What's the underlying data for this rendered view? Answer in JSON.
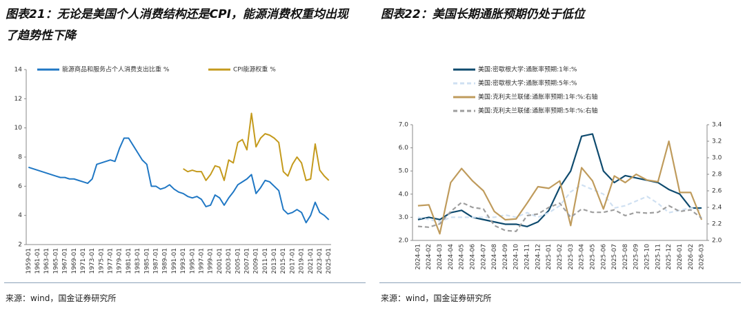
{
  "chart_data": [
    {
      "type": "line",
      "title": "图表21：无论是美国个人消费结构还是CPI，能源消费权重均出现了趋势性下降",
      "source": "来源：wind，国金证券研究所",
      "categories": [
        "1959-01",
        null,
        "1961-01",
        null,
        "1963-01",
        null,
        "1965-01",
        null,
        "1967-01",
        null,
        "1969-01",
        null,
        "1971-01",
        null,
        "1973-01",
        null,
        "1975-01",
        null,
        "1977-01",
        null,
        "1979-01",
        null,
        "1981-01",
        null,
        "1983-01",
        null,
        "1985-01",
        null,
        "1987-01",
        null,
        "1989-01",
        null,
        "1991-01",
        null,
        "1993-01",
        null,
        "1995-01",
        null,
        "1997-01",
        null,
        "1999-01",
        null,
        "2001-01",
        null,
        "2003-01",
        null,
        "2005-01",
        null,
        "2007-01",
        null,
        "2009-01",
        null,
        "2011-01",
        null,
        "2013-01",
        null,
        "2015-01",
        null,
        "2017-01",
        null,
        "2019-01",
        null,
        "2021-01",
        null,
        "2023-01",
        null,
        "2025-01"
      ],
      "series": [
        {
          "name": "能源商品和服务占个人消费支出比重 %",
          "color": "#1f77c4",
          "values": [
            7.3,
            7.2,
            7.1,
            7.0,
            6.9,
            6.8,
            6.7,
            6.6,
            6.6,
            6.5,
            6.5,
            6.4,
            6.3,
            6.2,
            6.5,
            7.5,
            7.6,
            7.7,
            7.8,
            7.7,
            8.6,
            9.3,
            9.3,
            8.8,
            8.3,
            7.8,
            7.5,
            6.0,
            6.0,
            5.8,
            5.9,
            6.1,
            5.8,
            5.6,
            5.5,
            5.3,
            5.2,
            5.3,
            5.1,
            4.6,
            4.7,
            5.4,
            5.2,
            4.7,
            5.2,
            5.6,
            6.1,
            6.3,
            6.5,
            6.8,
            5.5,
            5.9,
            6.4,
            6.3,
            6.0,
            5.7,
            4.4,
            4.1,
            4.2,
            4.4,
            4.2,
            3.5,
            4.0,
            4.9,
            4.2,
            4.0,
            3.7
          ]
        },
        {
          "name": "CPI能源权重 %",
          "color": "#c49a1c",
          "values": [
            null,
            null,
            null,
            null,
            null,
            null,
            null,
            null,
            null,
            null,
            null,
            null,
            null,
            null,
            null,
            null,
            null,
            null,
            null,
            null,
            null,
            null,
            null,
            null,
            null,
            null,
            null,
            null,
            null,
            null,
            null,
            null,
            null,
            null,
            7.2,
            7.0,
            7.1,
            7.0,
            7.0,
            6.4,
            6.8,
            7.4,
            7.3,
            6.4,
            7.8,
            7.6,
            9.0,
            9.2,
            8.5,
            11.0,
            8.7,
            9.3,
            9.6,
            9.5,
            9.3,
            9.0,
            7.0,
            6.7,
            7.5,
            8.0,
            7.6,
            6.4,
            6.5,
            8.9,
            7.1,
            6.7,
            6.4
          ]
        }
      ],
      "ylim": [
        2,
        14
      ],
      "yticks": [
        2,
        4,
        6,
        8,
        10,
        12,
        14
      ]
    },
    {
      "type": "line",
      "title": "图表22：美国长期通胀预期仍处于低位",
      "source": "来源：wind，国金证券研究所",
      "categories": [
        "2024-01",
        "2024-02",
        "2024-03",
        "2024-04",
        "2024-05",
        "2024-06",
        "2024-07",
        "2024-08",
        "2024-09",
        "2024-10",
        "2024-11",
        "2024-12",
        "2025-01",
        "2025-02",
        "2025-03",
        "2025-04",
        "2025-05",
        "2025-06",
        "2025-07",
        "2025-08",
        "2025-09",
        "2025-10",
        "2025-11",
        "2025-12",
        "2026-01",
        "2026-02",
        "2026-03"
      ],
      "series": [
        {
          "name": "美国:密歇根大学:通胀率预期:1年:%",
          "color": "#0e4a6e",
          "values": [
            2.9,
            3.0,
            2.9,
            3.2,
            3.3,
            3.0,
            2.9,
            2.8,
            2.7,
            2.7,
            2.6,
            2.8,
            3.3,
            4.3,
            5.0,
            6.5,
            6.6,
            5.0,
            4.5,
            4.8,
            4.7,
            4.6,
            4.5,
            4.2,
            4.0,
            3.4,
            3.4
          ]
        },
        {
          "name": "美国:密歇根大学:通胀率预期:5年:%",
          "color": "#cfe0f2",
          "dashed": true,
          "values": [
            3.0,
            2.9,
            2.8,
            3.0,
            3.0,
            3.0,
            3.0,
            3.0,
            3.1,
            3.0,
            3.2,
            3.0,
            3.2,
            3.5,
            4.1,
            4.4,
            4.2,
            4.0,
            3.4,
            3.5,
            3.7,
            3.9,
            3.6,
            3.2,
            3.3,
            3.4,
            3.3
          ]
        },
        {
          "name": "美国:克利夫兰联储:通胀率预期:1年:%:右轴",
          "color": "#bf9b5c",
          "axis": "y2",
          "values": [
            2.42,
            2.43,
            2.08,
            2.7,
            2.87,
            2.72,
            2.6,
            2.35,
            2.25,
            2.26,
            2.45,
            2.65,
            2.63,
            2.72,
            2.18,
            2.88,
            2.72,
            2.38,
            2.78,
            2.7,
            2.8,
            2.73,
            2.71,
            3.2,
            2.58,
            2.58,
            2.25
          ]
        },
        {
          "name": "美国:克利夫兰联储:通胀率预期:5年:%:右轴",
          "color": "#9e9e9e",
          "axis": "y2",
          "dashed": true,
          "values": [
            2.17,
            2.16,
            2.2,
            2.35,
            2.46,
            2.4,
            2.38,
            2.18,
            2.12,
            2.11,
            2.3,
            2.32,
            2.4,
            2.45,
            2.28,
            2.38,
            2.34,
            2.34,
            2.37,
            2.3,
            2.34,
            2.33,
            2.34,
            2.42,
            2.35,
            2.37,
            2.27
          ]
        }
      ],
      "ylim": [
        2,
        7
      ],
      "yticks": [
        {
          "value": 2,
          "label": "2.0"
        },
        {
          "value": 3,
          "label": "3.0"
        },
        {
          "value": 4,
          "label": "4.0"
        },
        {
          "value": 5,
          "label": "5.0"
        },
        {
          "value": 6,
          "label": "6.0"
        },
        {
          "value": 7,
          "label": "7.0"
        }
      ],
      "y2lim": [
        2,
        3.4
      ],
      "y2ticks": [
        {
          "value": 2,
          "label": "2.0"
        },
        {
          "value": 2.2,
          "label": "2.2"
        },
        {
          "value": 2.4,
          "label": "2.4"
        },
        {
          "value": 2.6,
          "label": "2.6"
        },
        {
          "value": 2.8,
          "label": "2.8"
        },
        {
          "value": 3,
          "label": "3.0"
        },
        {
          "value": 3.2,
          "label": "3.2"
        },
        {
          "value": 3.4,
          "label": "3.4"
        }
      ]
    }
  ]
}
